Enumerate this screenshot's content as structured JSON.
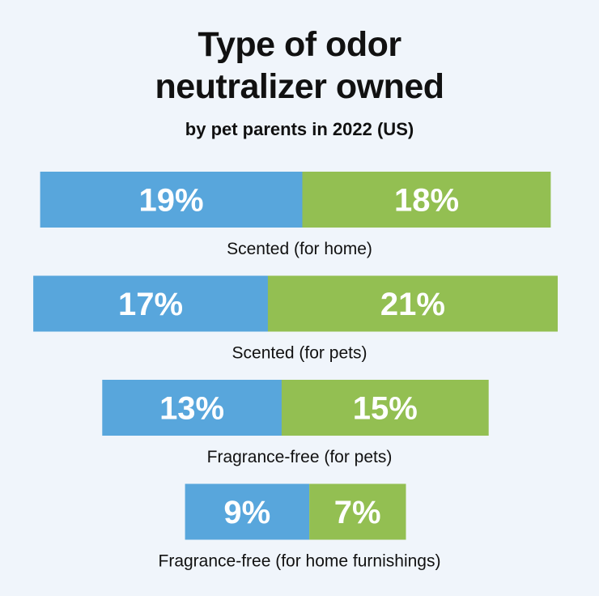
{
  "chart_data": {
    "type": "bar",
    "stacked": true,
    "title_lines": [
      "Type of odor",
      "neutralizer owned"
    ],
    "subtitle": "by pet parents in 2022 (US)",
    "categories": [
      "Scented (for home)",
      "Scented (for pets)",
      "Fragrance-free (for pets)",
      "Fragrance-free (for home furnishings)"
    ],
    "series": [
      {
        "values": [
          19,
          17,
          13,
          9
        ],
        "labels": [
          "19%",
          "17%",
          "13%",
          "9%"
        ],
        "color": "#58a6dc"
      },
      {
        "values": [
          18,
          21,
          15,
          7
        ],
        "labels": [
          "18%",
          "21%",
          "15%",
          "7%"
        ],
        "color": "#93bf52"
      }
    ],
    "xlabel": "",
    "ylabel": "",
    "grid": false,
    "legend": "none"
  }
}
